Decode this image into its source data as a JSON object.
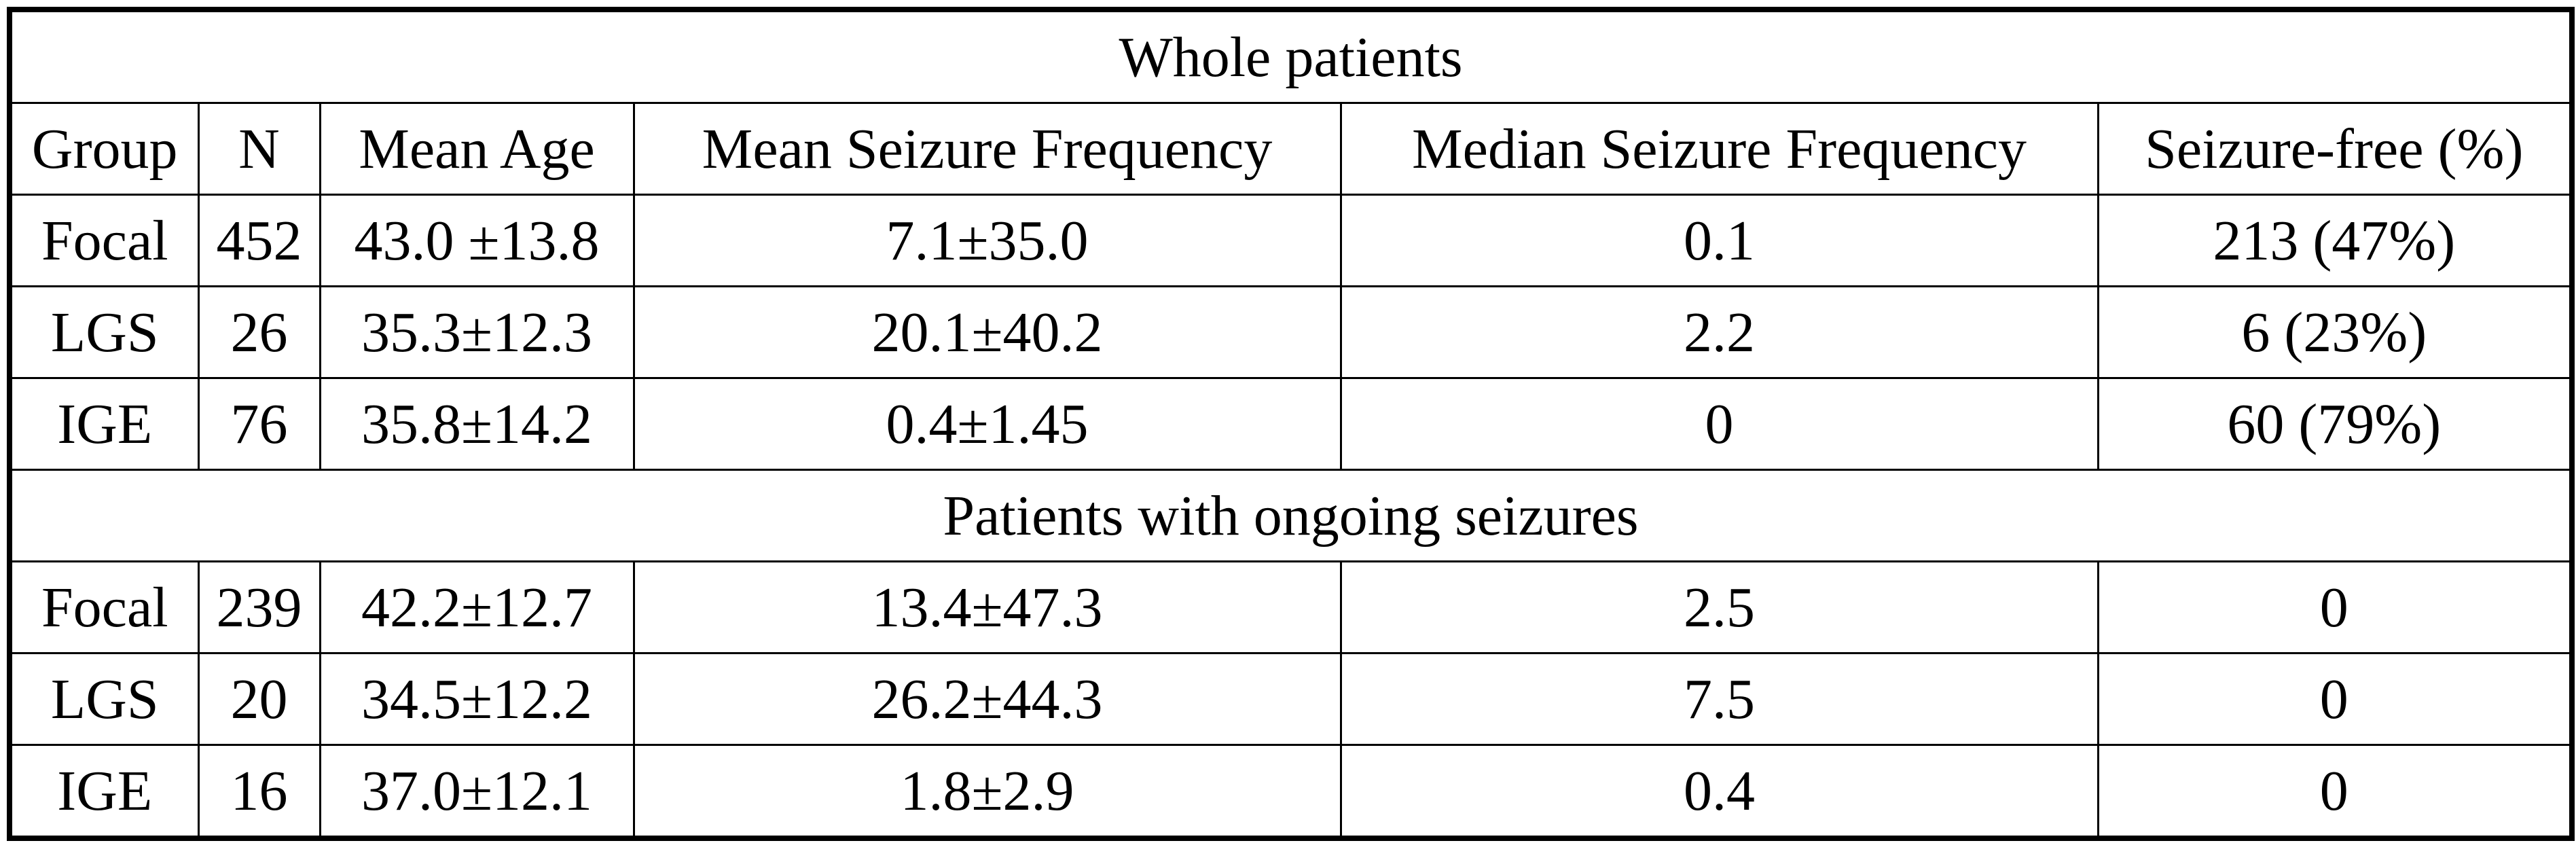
{
  "table": {
    "header": [
      "Group",
      "N",
      "Mean Age",
      "Mean Seizure Frequency",
      "Median Seizure Frequency",
      "Seizure-free (%)"
    ],
    "sections": [
      {
        "title": "Whole patients",
        "rows": [
          [
            "Focal",
            "452",
            "43.0 ±13.8",
            "7.1±35.0",
            "0.1",
            "213 (47%)"
          ],
          [
            "LGS",
            "26",
            "35.3±12.3",
            "20.1±40.2",
            "2.2",
            "6 (23%)"
          ],
          [
            "IGE",
            "76",
            "35.8±14.2",
            "0.4±1.45",
            "0",
            "60 (79%)"
          ]
        ]
      },
      {
        "title": "Patients with ongoing seizures",
        "rows": [
          [
            "Focal",
            "239",
            "42.2±12.7",
            "13.4±47.3",
            "2.5",
            "0"
          ],
          [
            "LGS",
            "20",
            "34.5±12.2",
            "26.2±44.3",
            "7.5",
            "0"
          ],
          [
            "IGE",
            "16",
            "37.0±12.1",
            "1.8±2.9",
            "0.4",
            "0"
          ]
        ]
      }
    ]
  }
}
